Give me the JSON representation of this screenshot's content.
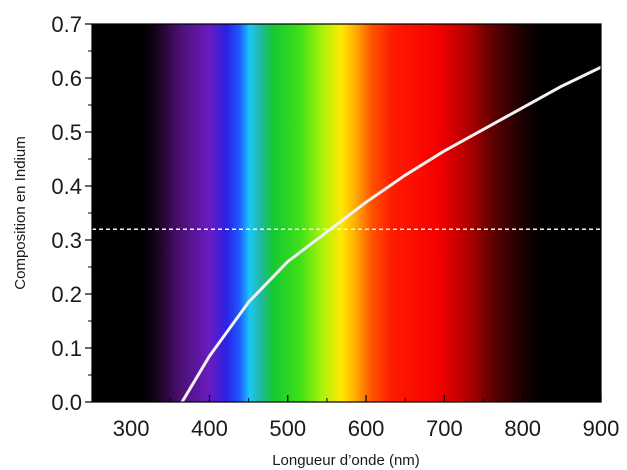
{
  "chart_data": {
    "type": "line",
    "title": "",
    "xlabel": "Longueur d’onde (nm)",
    "ylabel": "Composition en Indium",
    "xlim": [
      250,
      900
    ],
    "ylim": [
      0.0,
      0.7
    ],
    "x_ticks": [
      300,
      400,
      500,
      600,
      700,
      800,
      900
    ],
    "x_tick_labels": [
      "300",
      "400",
      "500",
      "600",
      "700",
      "800",
      "900"
    ],
    "y_ticks": [
      0.0,
      0.1,
      0.2,
      0.3,
      0.4,
      0.5,
      0.6,
      0.7
    ],
    "y_tick_labels": [
      "0.0",
      "0.1",
      "0.2",
      "0.3",
      "0.4",
      "0.5",
      "0.6",
      "0.7"
    ],
    "grid": false,
    "background": "visible light spectrum gradient (black outside ~360–810 nm)",
    "series": [
      {
        "color": "#f2f2f2",
        "style": "solid",
        "x": [
          365,
          400,
          450,
          500,
          550,
          600,
          650,
          700,
          750,
          800,
          850,
          900
        ],
        "y": [
          0.0,
          0.085,
          0.185,
          0.26,
          0.315,
          0.37,
          0.42,
          0.465,
          0.505,
          0.545,
          0.585,
          0.62
        ]
      }
    ],
    "reference_lines": [
      {
        "orientation": "horizontal",
        "y": 0.32,
        "style": "dashed",
        "color": "#f2f2f2"
      }
    ]
  }
}
